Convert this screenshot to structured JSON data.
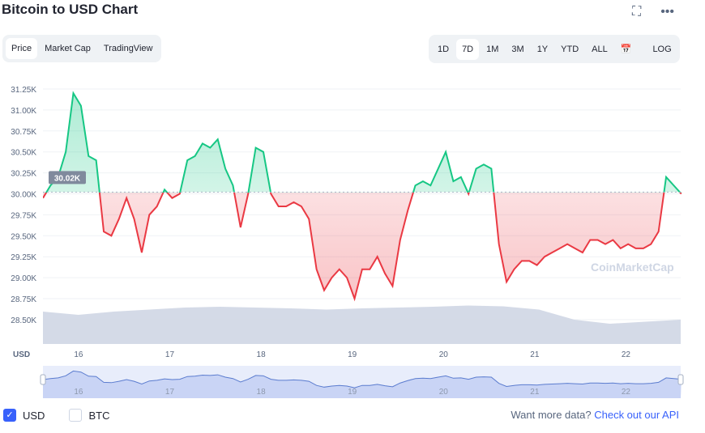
{
  "header": {
    "title": "Bitcoin to USD Chart",
    "fullscreen_icon": "expand-icon",
    "more_icon": "more-icon"
  },
  "tabs": [
    "Price",
    "Market Cap",
    "TradingView"
  ],
  "ranges": [
    "1D",
    "7D",
    "1M",
    "3M",
    "1Y",
    "YTD",
    "ALL"
  ],
  "active_range": "7D",
  "log_label": "LOG",
  "legend": {
    "usd": "USD",
    "btc": "BTC"
  },
  "footer": {
    "text": "Want more data?",
    "link": "Check out our API"
  },
  "watermark": "CoinMarketCap",
  "colors": {
    "up": "#16c784",
    "down": "#ea3943",
    "volume": "#cfd6e4",
    "accent": "#3861fb"
  },
  "chart_data": {
    "type": "line",
    "title": "Bitcoin to USD Chart",
    "ylabel": "USD",
    "ylim": [
      28.3,
      31.35
    ],
    "yticks": [
      "28.50K",
      "28.75K",
      "29.00K",
      "29.25K",
      "29.50K",
      "29.75K",
      "30.00K",
      "30.25K",
      "30.50K",
      "30.75K",
      "31.00K",
      "31.25K"
    ],
    "ytick_values": [
      28.5,
      28.75,
      29.0,
      29.25,
      29.5,
      29.75,
      30.0,
      30.25,
      30.5,
      30.75,
      31.0,
      31.25
    ],
    "xticks": [
      "16",
      "17",
      "18",
      "19",
      "20",
      "21",
      "22"
    ],
    "xlim": [
      15.61,
      22.6
    ],
    "baseline": 30.02,
    "baseline_label": "30.02K",
    "x_start": 15.61,
    "step_days": 0.0833,
    "price_k": [
      29.95,
      30.1,
      30.2,
      30.5,
      31.2,
      31.05,
      30.45,
      30.4,
      29.55,
      29.5,
      29.7,
      29.95,
      29.7,
      29.3,
      29.75,
      29.85,
      30.05,
      29.95,
      30.0,
      30.4,
      30.45,
      30.6,
      30.55,
      30.65,
      30.3,
      30.1,
      29.6,
      30.0,
      30.55,
      30.5,
      30.0,
      29.85,
      29.85,
      29.9,
      29.85,
      29.7,
      29.1,
      28.85,
      29.0,
      29.1,
      29.0,
      28.75,
      29.1,
      29.1,
      29.25,
      29.05,
      28.9,
      29.45,
      29.8,
      30.1,
      30.15,
      30.1,
      30.3,
      30.5,
      30.15,
      30.2,
      30.0,
      30.3,
      30.35,
      30.3,
      29.4,
      28.95,
      29.1,
      29.2,
      29.2,
      29.15,
      29.25,
      29.3,
      29.35,
      29.4,
      29.35,
      29.3,
      29.45,
      29.45,
      29.4,
      29.45,
      29.35,
      29.4,
      29.35,
      29.35,
      29.4,
      29.55,
      30.2,
      30.1,
      30.0
    ],
    "volume_relative": [
      0.8,
      0.72,
      0.8,
      0.85,
      0.9,
      0.92,
      0.9,
      0.88,
      0.85,
      0.88,
      0.9,
      0.92,
      0.95,
      0.93,
      0.85,
      0.6,
      0.5,
      0.55,
      0.6
    ]
  }
}
